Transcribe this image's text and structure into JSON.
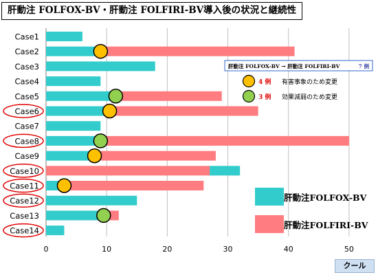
{
  "title": "肝動注 FOLFOX-BV・肝動注 FOLFIRI-BV導入後の状況と継続性",
  "unit_label": "クール",
  "colors": {
    "folfox": "#33cccc",
    "folfiri": "#ff7c80",
    "adverse_marker": "#ffc000",
    "efficacy_marker": "#92d050",
    "circled_case": "#e00000",
    "grid": "#bfbfbf",
    "info_box_border": "#3366cc",
    "count_text": "#e00000"
  },
  "legend": {
    "sequence_text": "肝動注 FOLFOX-BV → 肝動注 FOLFIRI-BV",
    "sequence_count": "7 例",
    "adverse_count": "4 例",
    "adverse_label": "有害事象のため変更",
    "efficacy_count": "3 例",
    "efficacy_label": "効果減弱のため変更",
    "folfox_label": "肝動注FOLFOX-BV",
    "folfiri_label": "肝動注FOLFIRI-BV"
  },
  "chart_data": {
    "type": "bar",
    "orientation": "horizontal",
    "stacked": true,
    "title": "肝動注 FOLFOX-BV・肝動注 FOLFIRI-BV導入後の状況と継続性",
    "xlabel": "クール",
    "xlim": [
      0,
      55
    ],
    "xticks": [
      0,
      10,
      20,
      30,
      40,
      50
    ],
    "grid": true,
    "categories": [
      "Case1",
      "Case2",
      "Case3",
      "Case4",
      "Case5",
      "Case6",
      "Case7",
      "Case8",
      "Case9",
      "Case10",
      "Case11",
      "Case12",
      "Case13",
      "Case14"
    ],
    "circled_categories": [
      "Case6",
      "Case8",
      "Case10",
      "Case11",
      "Case12",
      "Case14"
    ],
    "series": [
      {
        "name": "肝動注FOLFOX-BV",
        "ranges": [
          [
            0,
            6
          ],
          [
            0,
            9
          ],
          [
            0,
            18
          ],
          [
            0,
            9
          ],
          [
            0,
            11.5
          ],
          [
            0,
            10.5
          ],
          [
            0,
            9
          ],
          [
            0,
            9
          ],
          [
            0,
            8
          ],
          [
            27,
            32
          ],
          [
            0,
            3
          ],
          [
            0,
            15
          ],
          [
            0,
            9.5
          ],
          [
            0,
            3
          ]
        ]
      },
      {
        "name": "肝動注FOLFIRI-BV",
        "ranges": [
          null,
          [
            9,
            41
          ],
          null,
          null,
          [
            11.5,
            29
          ],
          [
            10.5,
            35
          ],
          null,
          [
            9,
            50
          ],
          [
            8,
            28
          ],
          [
            0,
            27
          ],
          [
            3,
            26
          ],
          null,
          [
            9.5,
            12
          ],
          null
        ]
      }
    ],
    "switch_markers": [
      {
        "case": "Case2",
        "at": 9,
        "reason": "有害事象のため変更"
      },
      {
        "case": "Case5",
        "at": 11.5,
        "reason": "効果減弱のため変更"
      },
      {
        "case": "Case6",
        "at": 10.5,
        "reason": "有害事象のため変更"
      },
      {
        "case": "Case8",
        "at": 9,
        "reason": "効果減弱のため変更"
      },
      {
        "case": "Case9",
        "at": 8,
        "reason": "有害事象のため変更"
      },
      {
        "case": "Case11",
        "at": 3,
        "reason": "有害事象のため変更"
      },
      {
        "case": "Case13",
        "at": 9.5,
        "reason": "効果減弱のため変更"
      }
    ]
  }
}
